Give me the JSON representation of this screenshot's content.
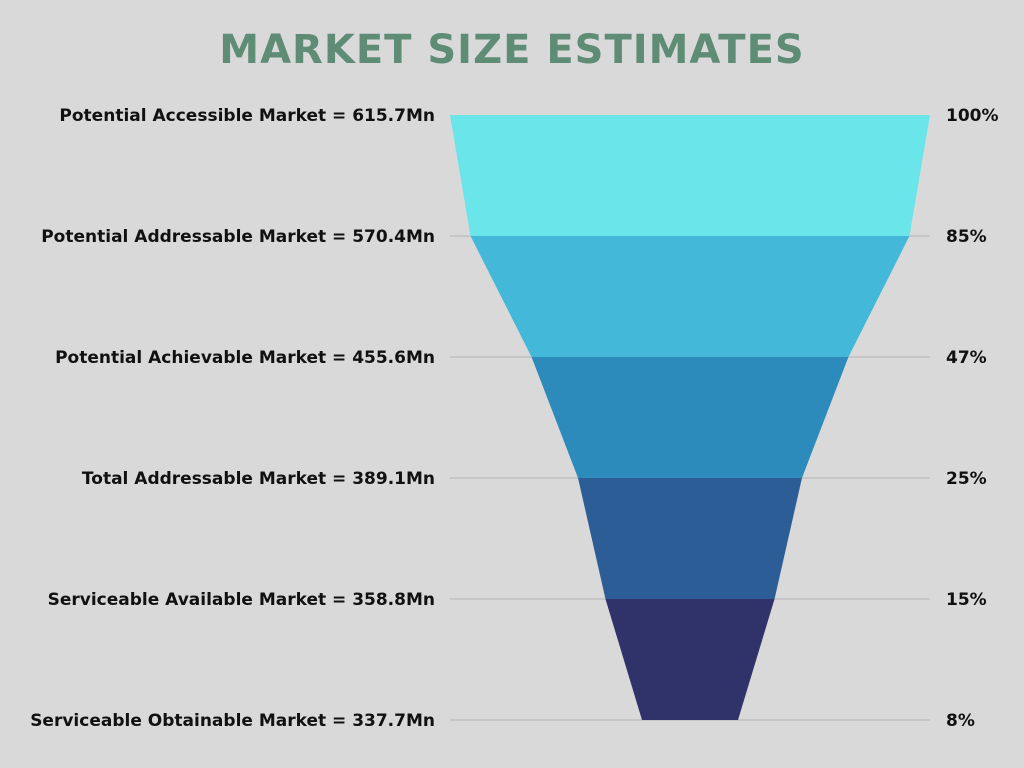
{
  "title": "MARKET SIZE ESTIMATES",
  "colors": {
    "background": "#d9d9d9",
    "title": "#5e8c74",
    "text": "#111111",
    "grid": "#b3b3b3"
  },
  "chart_data": {
    "type": "funnel",
    "title": "MARKET SIZE ESTIMATES",
    "stages": [
      {
        "label": "Potential Accessible Market = 615.7Mn",
        "name": "Potential Accessible Market",
        "value": 615.7,
        "unit": "Mn",
        "percent_label": "100%",
        "percent": 100,
        "color": "#6ae5e9"
      },
      {
        "label": "Potential Addressable Market = 570.4Mn",
        "name": "Potential Addressable Market",
        "value": 570.4,
        "unit": "Mn",
        "percent_label": "85%",
        "percent": 85,
        "color": "#43b8d8"
      },
      {
        "label": "Potential Achievable Market = 455.6Mn",
        "name": "Potential Achievable Market",
        "value": 455.6,
        "unit": "Mn",
        "percent_label": "47%",
        "percent": 47,
        "color": "#2d8bbb"
      },
      {
        "label": "Total Addressable Market = 389.1Mn",
        "name": "Total Addressable Market",
        "value": 389.1,
        "unit": "Mn",
        "percent_label": "25%",
        "percent": 25,
        "color": "#2d5d97"
      },
      {
        "label": "Serviceable Available Market = 358.8Mn",
        "name": "Serviceable Available Market",
        "value": 358.8,
        "unit": "Mn",
        "percent_label": "15%",
        "percent": 15,
        "color": "#2f336a"
      },
      {
        "label": "Serviceable Obtainable Market = 337.7Mn",
        "name": "Serviceable Obtainable Market",
        "value": 337.7,
        "unit": "Mn",
        "percent_label": "8%",
        "percent": 8
      }
    ],
    "grid": true
  }
}
